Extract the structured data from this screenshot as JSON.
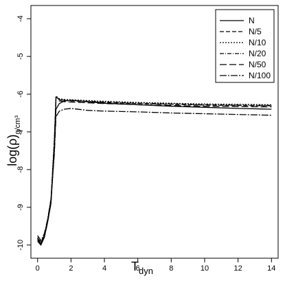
{
  "chart_data": {
    "type": "line",
    "title": "",
    "xlabel_main": "T",
    "xlabel_sub": "dyn",
    "ylabel_main": "log(ρ)",
    "ylabel_sub": "g/cm³",
    "xlim": [
      -0.4,
      14.4
    ],
    "ylim": [
      -10.35,
      -3.65
    ],
    "xticks": [
      0,
      2,
      4,
      6,
      8,
      10,
      12,
      14
    ],
    "xtick_labels": [
      "0",
      "2",
      "4",
      "6",
      "8",
      "10",
      "12",
      "14"
    ],
    "yticks": [
      -10,
      -9,
      -8,
      -7,
      -6,
      -5,
      -4
    ],
    "ytick_labels": [
      "-10",
      "-9",
      "-8",
      "-7",
      "-6",
      "-5",
      "-4"
    ],
    "grid": false,
    "legend_position": "top-right",
    "series": [
      {
        "name": "N",
        "dash": "",
        "x": [
          0.0,
          0.2,
          0.4,
          0.6,
          0.8,
          1.0,
          1.1,
          1.3,
          1.6,
          2.0,
          3.0,
          4.0,
          6.0,
          8.0,
          10.0,
          12.0,
          14.0
        ],
        "y": [
          -9.9,
          -10.0,
          -9.8,
          -9.4,
          -8.9,
          -7.5,
          -6.4,
          -6.25,
          -6.18,
          -6.16,
          -6.2,
          -6.24,
          -6.28,
          -6.32,
          -6.35,
          -6.38,
          -6.4
        ]
      },
      {
        "name": "N/5",
        "dash": "6,3",
        "x": [
          0.0,
          0.2,
          0.4,
          0.6,
          0.8,
          1.0,
          1.1,
          1.3,
          1.6,
          2.0,
          3.0,
          4.0,
          6.0,
          8.0,
          10.0,
          12.0,
          14.0
        ],
        "y": [
          -9.85,
          -9.95,
          -9.78,
          -9.38,
          -8.85,
          -7.3,
          -6.1,
          -6.15,
          -6.17,
          -6.18,
          -6.2,
          -6.22,
          -6.25,
          -6.27,
          -6.29,
          -6.3,
          -6.31
        ]
      },
      {
        "name": "N/10",
        "dash": "2,2",
        "x": [
          0.0,
          0.2,
          0.4,
          0.6,
          0.8,
          1.0,
          1.1,
          1.3,
          1.6,
          2.0,
          3.0,
          4.0,
          6.0,
          8.0,
          10.0,
          12.0,
          14.0
        ],
        "y": [
          -9.8,
          -9.92,
          -9.75,
          -9.35,
          -8.8,
          -7.2,
          -6.05,
          -6.12,
          -6.14,
          -6.15,
          -6.17,
          -6.19,
          -6.22,
          -6.24,
          -6.26,
          -6.27,
          -6.28
        ]
      },
      {
        "name": "N/20",
        "dash": "6,2,1,2",
        "x": [
          0.0,
          0.2,
          0.4,
          0.6,
          0.8,
          1.0,
          1.1,
          1.3,
          1.6,
          2.0,
          3.0,
          4.0,
          6.0,
          8.0,
          10.0,
          12.0,
          14.0
        ],
        "y": [
          -9.82,
          -9.93,
          -9.76,
          -9.36,
          -8.82,
          -7.25,
          -6.08,
          -6.14,
          -6.16,
          -6.17,
          -6.19,
          -6.21,
          -6.24,
          -6.26,
          -6.28,
          -6.29,
          -6.3
        ]
      },
      {
        "name": "N/50",
        "dash": "10,4",
        "x": [
          0.0,
          0.2,
          0.4,
          0.6,
          0.8,
          1.0,
          1.1,
          1.3,
          1.6,
          2.0,
          3.0,
          4.0,
          6.0,
          8.0,
          10.0,
          12.0,
          14.0
        ],
        "y": [
          -9.87,
          -9.97,
          -9.8,
          -9.4,
          -8.88,
          -7.35,
          -6.15,
          -6.18,
          -6.2,
          -6.21,
          -6.23,
          -6.25,
          -6.28,
          -6.3,
          -6.32,
          -6.33,
          -6.34
        ]
      },
      {
        "name": "N/100",
        "dash": "10,2,2,2",
        "x": [
          0.0,
          0.2,
          0.4,
          0.6,
          0.8,
          1.0,
          1.1,
          1.3,
          1.6,
          2.0,
          3.0,
          4.0,
          6.0,
          8.0,
          10.0,
          12.0,
          14.0
        ],
        "y": [
          -9.75,
          -9.88,
          -9.7,
          -9.32,
          -8.78,
          -7.6,
          -6.6,
          -6.45,
          -6.4,
          -6.38,
          -6.43,
          -6.45,
          -6.47,
          -6.5,
          -6.52,
          -6.54,
          -6.56
        ]
      }
    ]
  }
}
